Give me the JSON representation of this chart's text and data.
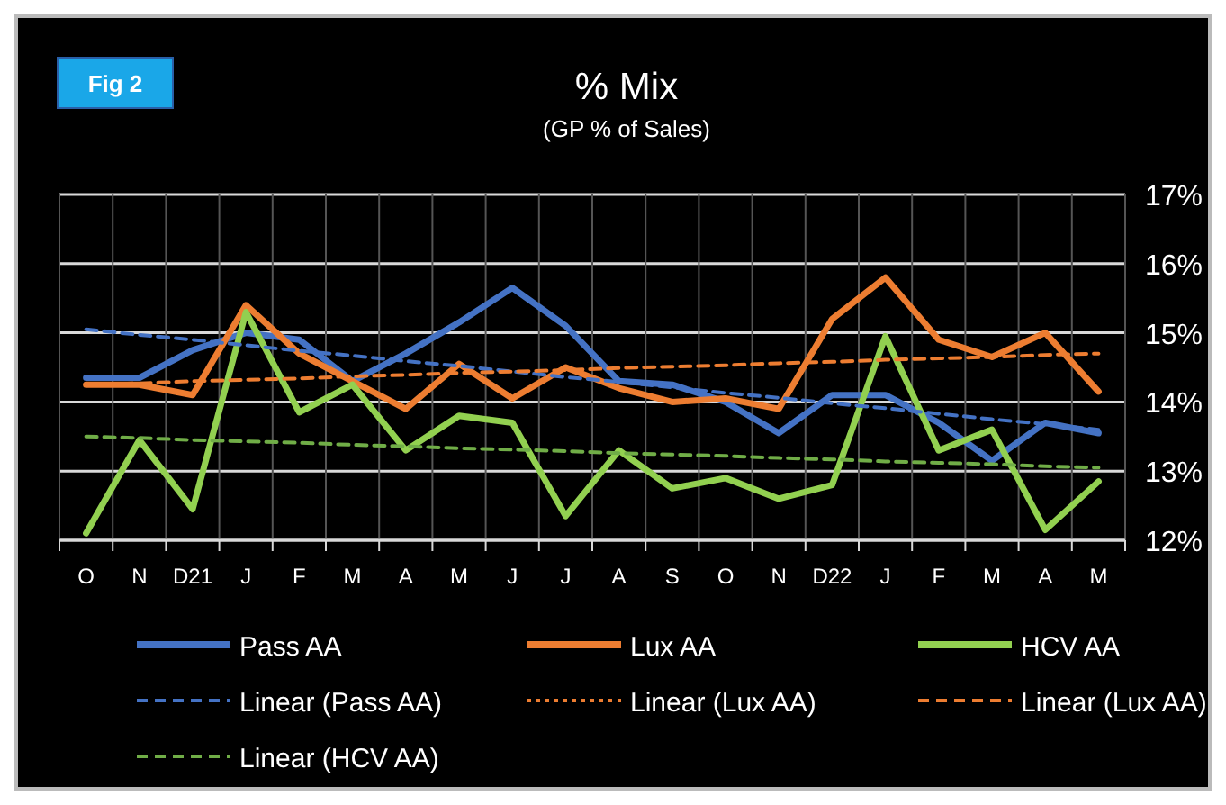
{
  "chart_data": {
    "type": "line",
    "title": "% Mix",
    "subtitle": "(GP % of Sales)",
    "annotations": [
      "Fig 2"
    ],
    "categories": [
      "O",
      "N",
      "D21",
      "J",
      "F",
      "M",
      "A",
      "M",
      "J",
      "J",
      "A",
      "S",
      "O",
      "N",
      "D22",
      "J",
      "F",
      "M",
      "A",
      "M"
    ],
    "ylim": [
      12,
      17
    ],
    "yticks": [
      {
        "value": 12,
        "label": "12%"
      },
      {
        "value": 13,
        "label": "13%"
      },
      {
        "value": 14,
        "label": "14%"
      },
      {
        "value": 15,
        "label": "15%"
      },
      {
        "value": 16,
        "label": "16%"
      },
      {
        "value": 17,
        "label": "17%"
      }
    ],
    "grid": true,
    "legend": "bottom",
    "series": [
      {
        "name": "Pass AA",
        "color": "#4472c4",
        "line_style": "solid",
        "values": [
          14.35,
          14.35,
          14.75,
          15.0,
          14.9,
          14.3,
          14.7,
          15.15,
          15.65,
          15.1,
          14.3,
          14.25,
          14.0,
          13.55,
          14.1,
          14.1,
          13.7,
          13.15,
          13.7,
          13.55
        ]
      },
      {
        "name": "Lux AA",
        "color": "#ed7d31",
        "line_style": "solid",
        "values": [
          14.25,
          14.25,
          14.1,
          15.4,
          14.7,
          14.3,
          13.9,
          14.55,
          14.05,
          14.5,
          14.2,
          14.0,
          14.05,
          13.9,
          15.2,
          15.8,
          14.9,
          14.65,
          15.0,
          14.15
        ]
      },
      {
        "name": "HCV AA",
        "color": "#92d050",
        "line_style": "solid",
        "values": [
          12.1,
          13.45,
          12.45,
          15.3,
          13.85,
          14.25,
          13.3,
          13.8,
          13.7,
          12.35,
          13.3,
          12.75,
          12.9,
          12.6,
          12.8,
          14.95,
          13.3,
          13.6,
          12.15,
          12.85
        ]
      },
      {
        "name": "Linear (Pass AA)",
        "color": "#4472c4",
        "line_style": "dashed",
        "values": [
          15.05,
          14.97,
          14.9,
          14.82,
          14.74,
          14.67,
          14.59,
          14.52,
          14.44,
          14.36,
          14.29,
          14.21,
          14.13,
          14.06,
          13.98,
          13.91,
          13.83,
          13.75,
          13.68,
          13.6
        ]
      },
      {
        "name": "Linear (Lux AA)",
        "color": "#ed7d31",
        "line_style": "dotted",
        "values": [
          null,
          null,
          null,
          null,
          null,
          null,
          null,
          null,
          null,
          null,
          null,
          null,
          null,
          null,
          null,
          null,
          null,
          null,
          null,
          null
        ]
      },
      {
        "name": "Linear (Lux AA)",
        "color": "#ed7d31",
        "line_style": "dashed",
        "values": [
          14.25,
          14.27,
          14.3,
          14.32,
          14.34,
          14.37,
          14.39,
          14.42,
          14.44,
          14.46,
          14.49,
          14.51,
          14.53,
          14.56,
          14.58,
          14.61,
          14.63,
          14.65,
          14.68,
          14.7
        ]
      },
      {
        "name": "Linear (HCV AA)",
        "color": "#70ad47",
        "line_style": "dashed",
        "values": [
          13.5,
          13.48,
          13.45,
          13.43,
          13.41,
          13.38,
          13.36,
          13.33,
          13.31,
          13.29,
          13.26,
          13.24,
          13.22,
          13.19,
          13.17,
          13.14,
          13.12,
          13.1,
          13.07,
          13.05
        ]
      }
    ]
  }
}
